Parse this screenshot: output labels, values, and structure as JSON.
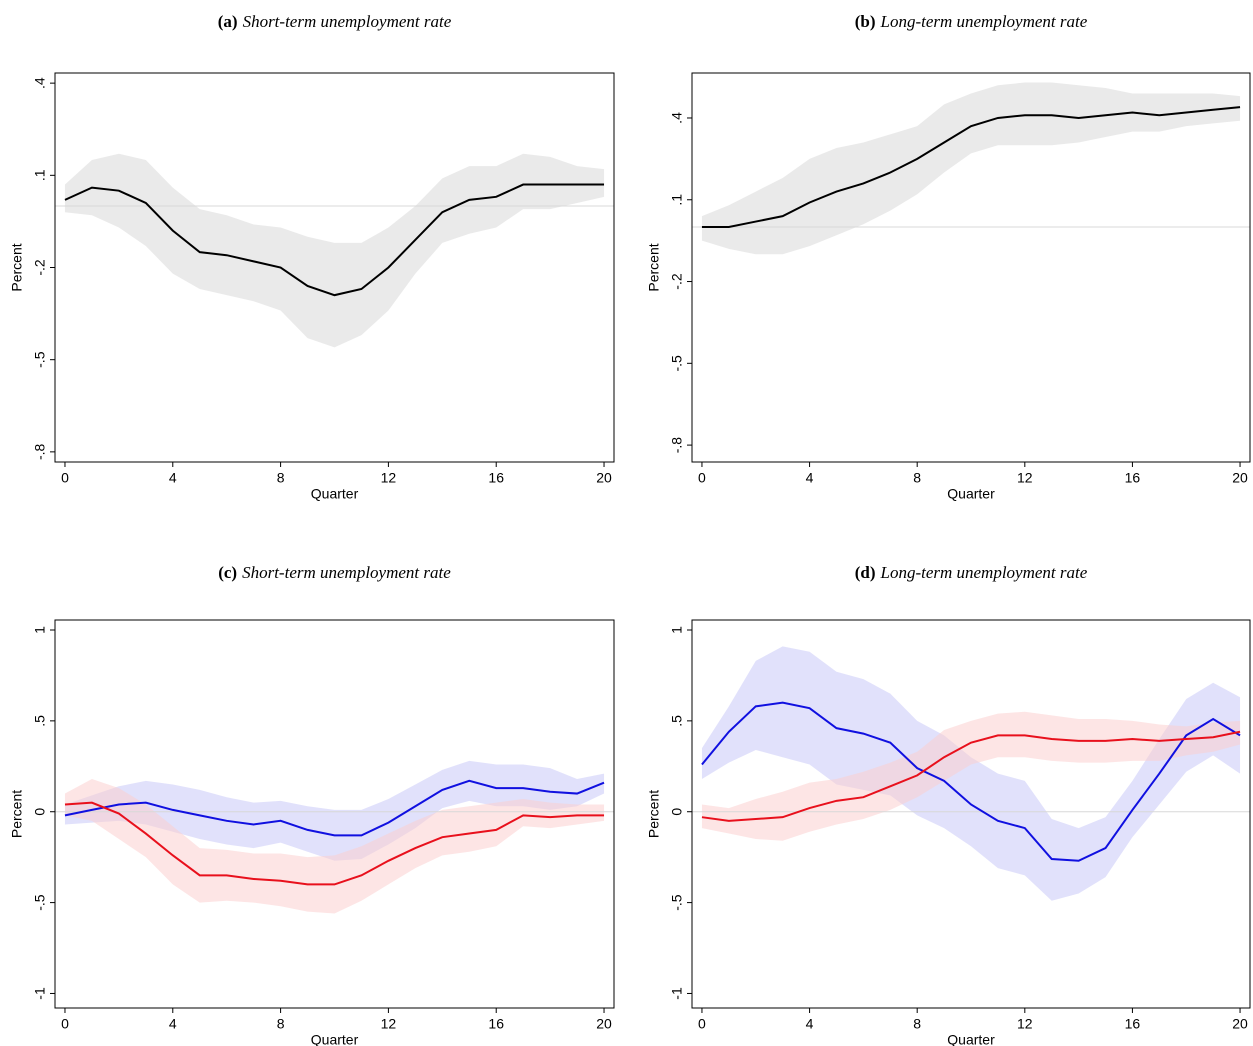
{
  "chart_data": [
    {
      "type": "line",
      "label": "(a)",
      "title": "Short-term unemployment rate",
      "xlabel": "Quarter",
      "ylabel": "Percent",
      "x": [
        0,
        1,
        2,
        3,
        4,
        5,
        6,
        7,
        8,
        9,
        10,
        11,
        12,
        13,
        14,
        15,
        16,
        17,
        18,
        19,
        20
      ],
      "xlim": [
        -0.37,
        20.37
      ],
      "xticks": [
        0,
        4,
        8,
        12,
        16,
        20
      ],
      "ylim": [
        -0.833,
        0.433
      ],
      "yticks": [
        {
          "value": -0.8,
          "label": "-.8"
        },
        {
          "value": -0.5,
          "label": "-.5"
        },
        {
          "value": -0.2,
          "label": "-.2"
        },
        {
          "value": 0.1,
          "label": ".1"
        },
        {
          "value": 0.4,
          "label": ".4"
        }
      ],
      "reference_line": 0,
      "series": [
        {
          "color": "#000000",
          "band_color": "#d9d9d9",
          "values": [
            0.02,
            0.06,
            0.05,
            0.01,
            -0.08,
            -0.15,
            -0.16,
            -0.18,
            -0.2,
            -0.26,
            -0.29,
            -0.27,
            -0.2,
            -0.11,
            -0.02,
            0.02,
            0.03,
            0.07,
            0.07,
            0.07,
            0.07
          ],
          "upper": [
            0.07,
            0.15,
            0.17,
            0.15,
            0.06,
            -0.01,
            -0.03,
            -0.06,
            -0.07,
            -0.1,
            -0.12,
            -0.12,
            -0.07,
            0.0,
            0.09,
            0.13,
            0.13,
            0.17,
            0.16,
            0.13,
            0.12
          ],
          "lower": [
            -0.02,
            -0.03,
            -0.07,
            -0.13,
            -0.22,
            -0.27,
            -0.29,
            -0.31,
            -0.34,
            -0.43,
            -0.46,
            -0.42,
            -0.34,
            -0.22,
            -0.12,
            -0.09,
            -0.07,
            -0.01,
            -0.01,
            0.01,
            0.03
          ]
        }
      ]
    },
    {
      "type": "line",
      "label": "(b)",
      "title": "Long-term unemployment rate",
      "xlabel": "Quarter",
      "ylabel": "Percent",
      "x": [
        0,
        1,
        2,
        3,
        4,
        5,
        6,
        7,
        8,
        9,
        10,
        11,
        12,
        13,
        14,
        15,
        16,
        17,
        18,
        19,
        20
      ],
      "xlim": [
        -0.37,
        20.37
      ],
      "xticks": [
        0,
        4,
        8,
        12,
        16,
        20
      ],
      "ylim": [
        -0.862,
        0.565
      ],
      "yticks": [
        {
          "value": -0.8,
          "label": "-.8"
        },
        {
          "value": -0.5,
          "label": "-.5"
        },
        {
          "value": -0.2,
          "label": "-.2"
        },
        {
          "value": 0.1,
          "label": ".1"
        },
        {
          "value": 0.4,
          "label": ".4"
        }
      ],
      "reference_line": 0,
      "series": [
        {
          "color": "#000000",
          "band_color": "#d9d9d9",
          "values": [
            0.0,
            0.0,
            0.02,
            0.04,
            0.09,
            0.13,
            0.16,
            0.2,
            0.25,
            0.31,
            0.37,
            0.4,
            0.41,
            0.41,
            0.4,
            0.41,
            0.42,
            0.41,
            0.42,
            0.43,
            0.44
          ],
          "upper": [
            0.04,
            0.08,
            0.13,
            0.18,
            0.25,
            0.29,
            0.31,
            0.34,
            0.37,
            0.45,
            0.49,
            0.52,
            0.53,
            0.53,
            0.52,
            0.51,
            0.49,
            0.49,
            0.49,
            0.49,
            0.48
          ],
          "lower": [
            -0.05,
            -0.08,
            -0.1,
            -0.1,
            -0.07,
            -0.03,
            0.01,
            0.06,
            0.12,
            0.2,
            0.27,
            0.3,
            0.3,
            0.3,
            0.31,
            0.33,
            0.35,
            0.35,
            0.37,
            0.38,
            0.39
          ]
        }
      ]
    },
    {
      "type": "line",
      "label": "(c)",
      "title": "Short-term unemployment rate",
      "xlabel": "Quarter",
      "ylabel": "Percent",
      "x": [
        0,
        1,
        2,
        3,
        4,
        5,
        6,
        7,
        8,
        9,
        10,
        11,
        12,
        13,
        14,
        15,
        16,
        17,
        18,
        19,
        20
      ],
      "xlim": [
        -0.37,
        20.37
      ],
      "xticks": [
        0,
        4,
        8,
        12,
        16,
        20
      ],
      "ylim": [
        -1.08,
        1.055
      ],
      "yticks": [
        -1,
        {
          "value": -0.5,
          "label": "-.5"
        },
        0,
        {
          "value": 0.5,
          "label": ".5"
        },
        1
      ],
      "reference_line": 0,
      "series": [
        {
          "color": "#1010e0",
          "band_color": "#c8c8f8",
          "values": [
            -0.02,
            0.01,
            0.04,
            0.05,
            0.01,
            -0.02,
            -0.05,
            -0.07,
            -0.05,
            -0.1,
            -0.13,
            -0.13,
            -0.06,
            0.03,
            0.12,
            0.17,
            0.13,
            0.13,
            0.11,
            0.1,
            0.16
          ],
          "upper": [
            0.04,
            0.09,
            0.14,
            0.17,
            0.15,
            0.12,
            0.08,
            0.05,
            0.06,
            0.03,
            0.01,
            0.01,
            0.07,
            0.15,
            0.23,
            0.28,
            0.26,
            0.26,
            0.24,
            0.18,
            0.21
          ],
          "lower": [
            -0.07,
            -0.06,
            -0.05,
            -0.07,
            -0.11,
            -0.15,
            -0.18,
            -0.2,
            -0.17,
            -0.22,
            -0.27,
            -0.26,
            -0.18,
            -0.09,
            0.02,
            0.06,
            0.03,
            0.03,
            0.01,
            0.03,
            0.1
          ]
        },
        {
          "color": "#e8101c",
          "band_color": "#fbd0d0",
          "values": [
            0.04,
            0.05,
            -0.01,
            -0.12,
            -0.24,
            -0.35,
            -0.35,
            -0.37,
            -0.38,
            -0.4,
            -0.4,
            -0.35,
            -0.27,
            -0.2,
            -0.14,
            -0.12,
            -0.1,
            -0.02,
            -0.03,
            -0.02,
            -0.02
          ],
          "upper": [
            0.1,
            0.18,
            0.13,
            0.04,
            -0.08,
            -0.2,
            -0.21,
            -0.23,
            -0.23,
            -0.25,
            -0.24,
            -0.19,
            -0.12,
            -0.05,
            0.01,
            0.03,
            0.05,
            0.07,
            0.05,
            0.04,
            0.04
          ],
          "lower": [
            -0.02,
            -0.05,
            -0.15,
            -0.25,
            -0.4,
            -0.5,
            -0.49,
            -0.5,
            -0.52,
            -0.55,
            -0.56,
            -0.49,
            -0.4,
            -0.31,
            -0.24,
            -0.22,
            -0.19,
            -0.08,
            -0.09,
            -0.07,
            -0.05
          ]
        }
      ]
    },
    {
      "type": "line",
      "label": "(d)",
      "title": "Long-term unemployment rate",
      "xlabel": "Quarter",
      "ylabel": "Percent",
      "x": [
        0,
        1,
        2,
        3,
        4,
        5,
        6,
        7,
        8,
        9,
        10,
        11,
        12,
        13,
        14,
        15,
        16,
        17,
        18,
        19,
        20
      ],
      "xlim": [
        -0.37,
        20.37
      ],
      "xticks": [
        0,
        4,
        8,
        12,
        16,
        20
      ],
      "ylim": [
        -1.08,
        1.055
      ],
      "yticks": [
        -1,
        {
          "value": -0.5,
          "label": "-.5"
        },
        0,
        {
          "value": 0.5,
          "label": ".5"
        },
        1
      ],
      "reference_line": 0,
      "series": [
        {
          "color": "#1010e0",
          "band_color": "#c8c8f8",
          "values": [
            0.26,
            0.44,
            0.58,
            0.6,
            0.57,
            0.46,
            0.43,
            0.38,
            0.24,
            0.17,
            0.04,
            -0.05,
            -0.09,
            -0.26,
            -0.27,
            -0.2,
            0.01,
            0.21,
            0.42,
            0.51,
            0.42
          ],
          "upper": [
            0.35,
            0.58,
            0.83,
            0.91,
            0.88,
            0.77,
            0.73,
            0.65,
            0.5,
            0.42,
            0.3,
            0.21,
            0.17,
            -0.04,
            -0.09,
            -0.03,
            0.17,
            0.4,
            0.62,
            0.71,
            0.63
          ],
          "lower": [
            0.18,
            0.27,
            0.34,
            0.3,
            0.26,
            0.15,
            0.12,
            0.09,
            -0.02,
            -0.09,
            -0.19,
            -0.31,
            -0.35,
            -0.49,
            -0.45,
            -0.36,
            -0.14,
            0.04,
            0.22,
            0.31,
            0.21
          ]
        },
        {
          "color": "#e8101c",
          "band_color": "#fbd0d0",
          "values": [
            -0.03,
            -0.05,
            -0.04,
            -0.03,
            0.02,
            0.06,
            0.08,
            0.14,
            0.2,
            0.3,
            0.38,
            0.42,
            0.42,
            0.4,
            0.39,
            0.39,
            0.4,
            0.39,
            0.4,
            0.41,
            0.44
          ],
          "upper": [
            0.04,
            0.02,
            0.07,
            0.11,
            0.16,
            0.18,
            0.22,
            0.27,
            0.33,
            0.45,
            0.5,
            0.54,
            0.55,
            0.53,
            0.51,
            0.51,
            0.5,
            0.48,
            0.47,
            0.49,
            0.5
          ],
          "lower": [
            -0.09,
            -0.12,
            -0.15,
            -0.16,
            -0.11,
            -0.07,
            -0.04,
            0.01,
            0.08,
            0.17,
            0.26,
            0.3,
            0.3,
            0.28,
            0.27,
            0.27,
            0.28,
            0.28,
            0.31,
            0.33,
            0.37
          ]
        }
      ]
    }
  ]
}
